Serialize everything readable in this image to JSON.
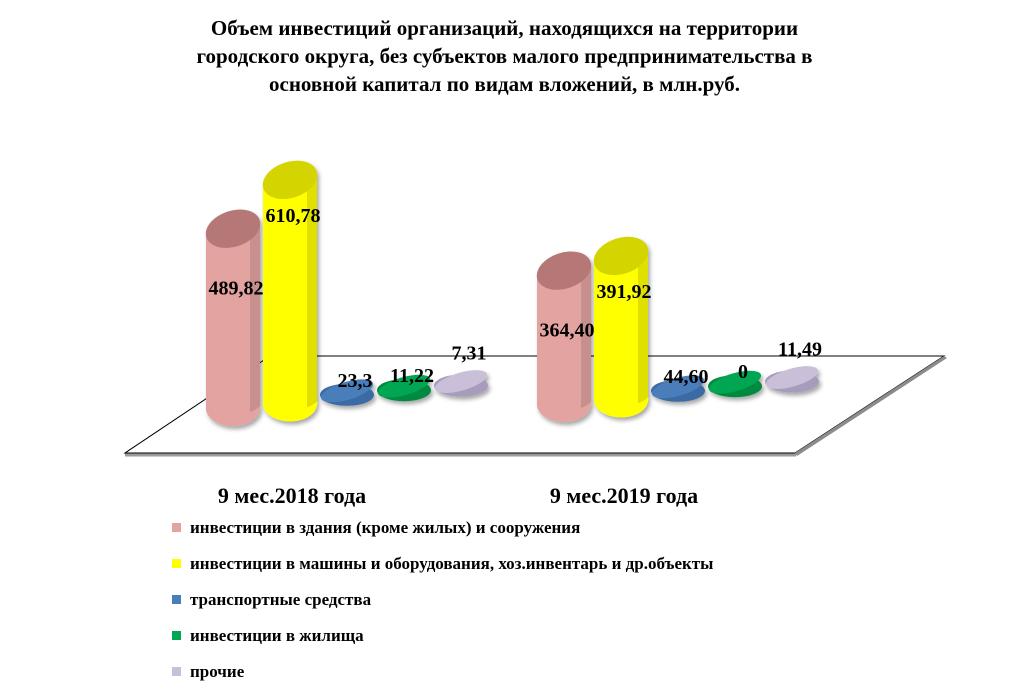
{
  "chart_data": {
    "type": "bar",
    "title_lines": [
      "Объем инвестиций  организаций,  находящихся на территории",
      "городского округа, без субъектов малого предпринимательства  в",
      "основной капитал  по видам вложений,  в млн.руб."
    ],
    "categories": [
      "9 мес.2018 года",
      "9 мес.2019 года"
    ],
    "series": [
      {
        "name": "инвестиции в здания (кроме жилых) и сооружения",
        "values": [
          489.82,
          364.4
        ],
        "labels": [
          "489,82",
          "364,40"
        ],
        "color": "#e3a3a1",
        "top_color": "#b57877"
      },
      {
        "name": "инвестиции в машины и оборудования, хоз.инвентарь и др.объекты",
        "values": [
          610.78,
          391.92
        ],
        "labels": [
          "610,78",
          "391,92"
        ],
        "color": "#ffff00",
        "top_color": "#d4d400"
      },
      {
        "name": "транспортные средства",
        "values": [
          23.3,
          44.6
        ],
        "labels": [
          "23,3",
          "44,60"
        ],
        "color": "#4a7ebb",
        "top_color": "#3a6aa5"
      },
      {
        "name": "инвестиции в жилища",
        "values": [
          11.22,
          0
        ],
        "labels": [
          "11,22",
          "0"
        ],
        "color": "#00a651",
        "top_color": "#008a40"
      },
      {
        "name": "прочие",
        "values": [
          7.31,
          11.49
        ],
        "labels": [
          "7,31",
          "11,49"
        ],
        "color": "#c9bfd9",
        "top_color": "#a89cbc"
      }
    ],
    "grid": false,
    "legend_position": "bottom"
  }
}
